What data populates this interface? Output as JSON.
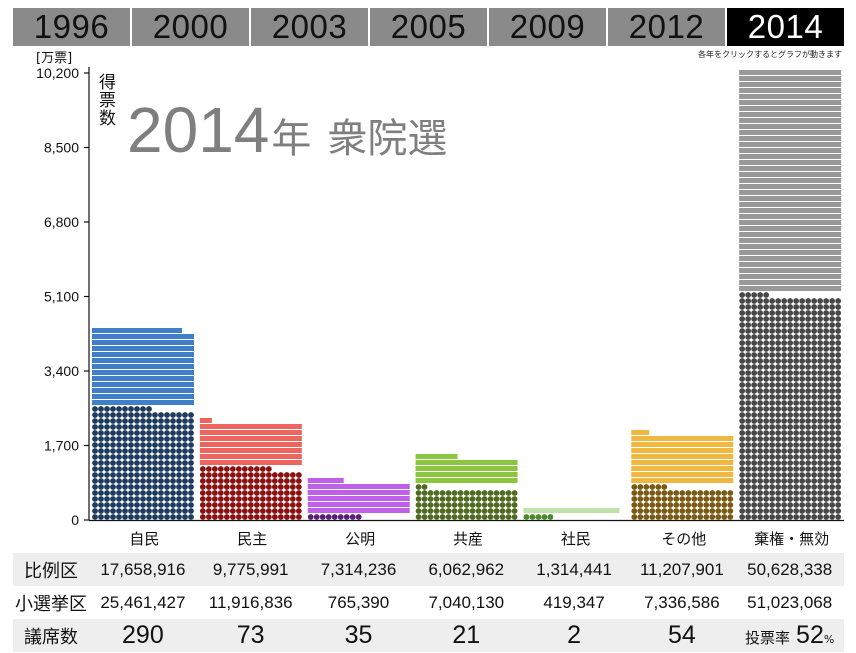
{
  "tabs": [
    {
      "label": "1996",
      "active": false
    },
    {
      "label": "2000",
      "active": false
    },
    {
      "label": "2003",
      "active": false
    },
    {
      "label": "2005",
      "active": false
    },
    {
      "label": "2009",
      "active": false
    },
    {
      "label": "2012",
      "active": false
    },
    {
      "label": "2014",
      "active": true
    }
  ],
  "hint": "各年をクリックするとグラフが動きます",
  "title": {
    "year": "2014",
    "suffix": "年",
    "name": "衆院選"
  },
  "table": {
    "proportional_label": "比例区",
    "single_label": "小選挙区",
    "seats_label": "議席数",
    "proportional": [
      "17,658,916",
      "9,775,991",
      "7,314,236",
      "6,062,962",
      "1,314,441",
      "11,207,901",
      "50,628,338"
    ],
    "single": [
      "25,461,427",
      "11,916,836",
      "765,390",
      "7,040,130",
      "419,347",
      "7,336,586",
      "51,023,068"
    ],
    "seats": [
      "290",
      "73",
      "35",
      "21",
      "2",
      "54"
    ],
    "turnout_label": "投票率",
    "turnout_value": "52",
    "turnout_unit": "%"
  },
  "chart_data": {
    "type": "bar",
    "title": "2014年 衆院選",
    "unit": "[万票]",
    "ylabel": "得票数",
    "ylim": [
      0,
      10200
    ],
    "yticks": [
      "0",
      "1,700",
      "3,400",
      "5,100",
      "6,800",
      "8,500",
      "10,200"
    ],
    "categories": [
      "自民",
      "民主",
      "公明",
      "共産",
      "社民",
      "その他",
      "棄権・無効"
    ],
    "series": [
      {
        "name": "小選挙区",
        "values": [
          2546.1,
          1191.7,
          76.5,
          704.0,
          41.9,
          733.7,
          5102.3
        ]
      },
      {
        "name": "比例区",
        "values": [
          1765.9,
          977.6,
          731.4,
          606.3,
          131.4,
          1120.8,
          5062.8
        ]
      }
    ],
    "colors": {
      "single": [
        "#1f3a5f",
        "#8b1010",
        "#5a1f78",
        "#4f6b1f",
        "#4a8a2a",
        "#7a5a12",
        "#474747"
      ],
      "proportional": [
        "#3e7fc8",
        "#ec655f",
        "#c060e8",
        "#8cc640",
        "#bfe0a8",
        "#f0b840",
        "#999999"
      ]
    }
  }
}
